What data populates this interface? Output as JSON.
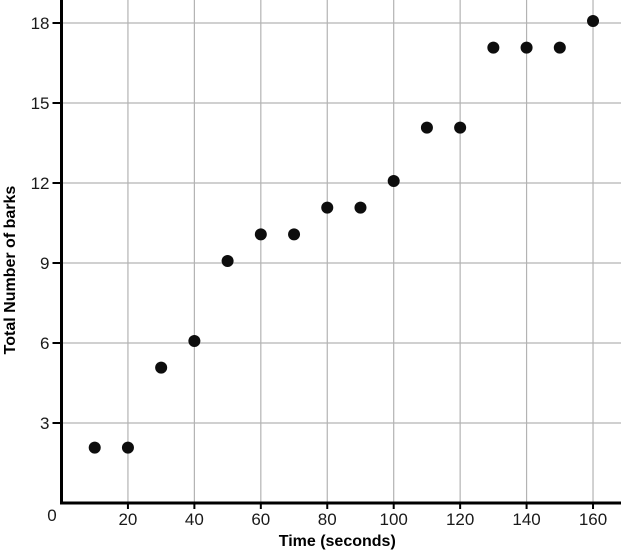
{
  "chart_data": {
    "type": "scatter",
    "title": "",
    "xlabel": "Time (seconds)",
    "ylabel": "Total Number of barks",
    "x": [
      10,
      20,
      30,
      40,
      50,
      60,
      70,
      80,
      90,
      100,
      110,
      120,
      130,
      140,
      150,
      160
    ],
    "y": [
      2,
      2,
      5,
      6,
      9,
      10,
      10,
      11,
      11,
      12,
      14,
      14,
      17,
      17,
      17,
      18
    ],
    "x_ticks": [
      20,
      40,
      60,
      80,
      100,
      120,
      140,
      160
    ],
    "y_ticks": [
      3,
      6,
      9,
      12,
      15,
      18
    ],
    "origin_tick_label": "0",
    "xlim": [
      0,
      168
    ],
    "ylim": [
      0,
      18.9
    ],
    "grid": true,
    "legend": "none",
    "marker": "filled-circle"
  },
  "style": {
    "background_color": "#ffffff",
    "grid_color": "#b3b3b3",
    "axis_color": "#000000",
    "dot_color": "#0d0d0d",
    "tick_label_color": "#1a1a1a",
    "axis_title_color": "#000000"
  }
}
